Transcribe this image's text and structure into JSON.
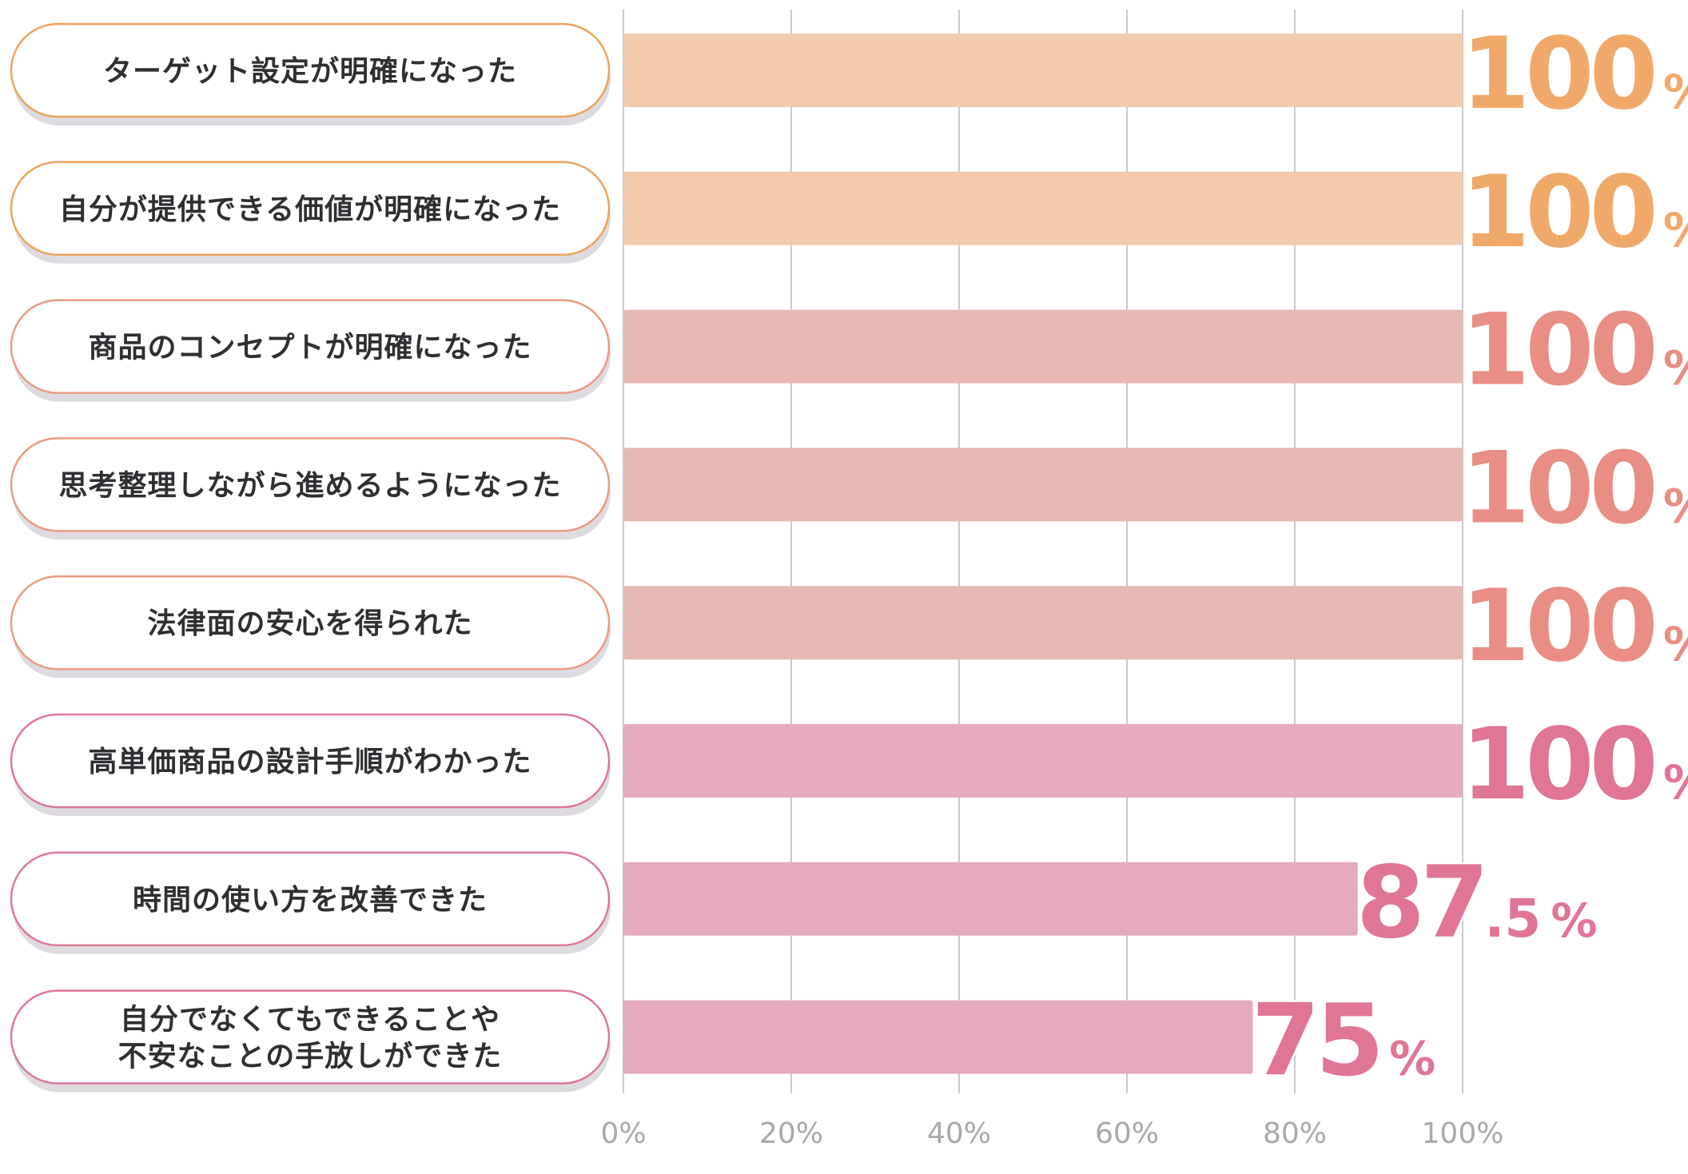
{
  "chart_data": {
    "type": "bar",
    "orientation": "horizontal",
    "categories": [
      "ターゲット設定が明確になった",
      "自分が提供できる価値が明確になった",
      "商品のコンセプトが明確になった",
      "思考整理しながら進めるようになった",
      "法律面の安心を得られた",
      "高単価商品の設計手順がわかった",
      "時間の使い方を改善できた",
      "自分でなくてもできることや\n不安なことの手放しができた"
    ],
    "values": [
      100,
      100,
      100,
      100,
      100,
      100,
      87.5,
      75
    ],
    "value_labels": [
      {
        "number": "100",
        "unit": "%"
      },
      {
        "number": "100",
        "unit": "%"
      },
      {
        "number": "100",
        "unit": "%"
      },
      {
        "number": "100",
        "unit": "%"
      },
      {
        "number": "100",
        "unit": "%"
      },
      {
        "number": "100",
        "unit": "%"
      },
      {
        "number": "87.5",
        "unit": "%"
      },
      {
        "number": "75",
        "unit": "%"
      }
    ],
    "xlim": [
      0,
      100
    ],
    "xticks": [
      "0%",
      "20%",
      "40%",
      "60%",
      "80%",
      "100%"
    ],
    "grid": true,
    "legend": false,
    "colors": {
      "bars": [
        "#f2cbad",
        "#f2cbad",
        "#e6b8b2",
        "#e6b8b2",
        "#e6b8b2",
        "#e5abbc",
        "#e5abbc",
        "#e5abbc"
      ],
      "labels": [
        "#f1a96a",
        "#f1a96a",
        "#e98e85",
        "#e98e85",
        "#e98e85",
        "#e07595",
        "#e07595",
        "#e07595"
      ],
      "pill_borders": [
        "#eea35c",
        "#eea35c",
        "#ec9a82",
        "#ec9a82",
        "#ec9a82",
        "#de7896",
        "#de7896",
        "#de7896"
      ],
      "pill_shadow": "#dddbe0",
      "grid": "#b9b6c0",
      "tick_text": "#a8a8ae",
      "category_text": "#2f2f33"
    }
  }
}
